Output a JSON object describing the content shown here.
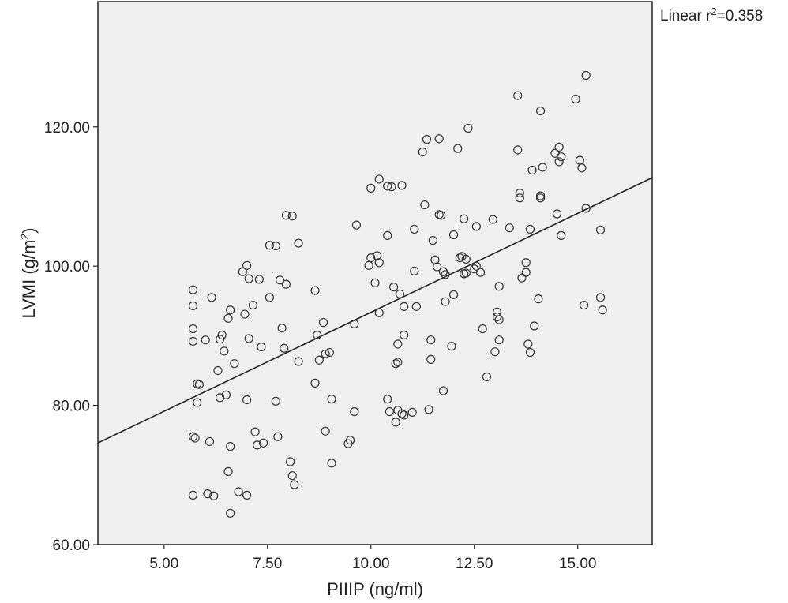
{
  "chart_data": {
    "type": "scatter",
    "xlabel": "PIIIP (ng/ml)",
    "ylabel_main": "LVMI (g/m",
    "ylabel_sup": "2",
    "ylabel_end": ")",
    "xlim": [
      3.4,
      16.8
    ],
    "ylim": [
      60,
      138
    ],
    "xticks": [
      "5.00",
      "7.50",
      "10.00",
      "12.50",
      "15.00"
    ],
    "yticks": [
      "60.00",
      "80.00",
      "100.00",
      "120.00"
    ],
    "xtick_values": [
      5,
      7.5,
      10,
      12.5,
      15
    ],
    "ytick_values": [
      60,
      80,
      100,
      120
    ],
    "annotation": {
      "prefix": "Linear r",
      "sup": "2",
      "suffix": "=0.358"
    },
    "fit_line": {
      "x": [
        3.4,
        16.8
      ],
      "y": [
        74.6,
        112.7
      ]
    },
    "marker": "open-circle",
    "background": "#efefef",
    "points": [
      [
        5.7,
        96.6
      ],
      [
        5.7,
        94.3
      ],
      [
        5.7,
        91.0
      ],
      [
        5.7,
        89.2
      ],
      [
        5.7,
        75.5
      ],
      [
        5.7,
        67.1
      ],
      [
        5.75,
        75.3
      ],
      [
        5.8,
        83.1
      ],
      [
        5.8,
        80.4
      ],
      [
        5.85,
        83.0
      ],
      [
        6.0,
        89.4
      ],
      [
        6.05,
        67.3
      ],
      [
        6.1,
        74.8
      ],
      [
        6.15,
        95.5
      ],
      [
        6.2,
        67.0
      ],
      [
        6.3,
        85.0
      ],
      [
        6.35,
        89.5
      ],
      [
        6.35,
        81.1
      ],
      [
        6.4,
        90.1
      ],
      [
        6.45,
        87.8
      ],
      [
        6.5,
        81.5
      ],
      [
        6.55,
        92.5
      ],
      [
        6.55,
        70.5
      ],
      [
        6.6,
        93.7
      ],
      [
        6.6,
        74.1
      ],
      [
        6.6,
        64.5
      ],
      [
        6.7,
        86.0
      ],
      [
        6.8,
        67.6
      ],
      [
        6.9,
        99.2
      ],
      [
        6.95,
        93.1
      ],
      [
        7.0,
        100.1
      ],
      [
        7.0,
        80.8
      ],
      [
        7.0,
        67.1
      ],
      [
        7.05,
        98.2
      ],
      [
        7.05,
        89.6
      ],
      [
        7.15,
        94.4
      ],
      [
        7.2,
        76.2
      ],
      [
        7.25,
        74.3
      ],
      [
        7.3,
        98.1
      ],
      [
        7.35,
        88.4
      ],
      [
        7.4,
        74.6
      ],
      [
        7.55,
        103.0
      ],
      [
        7.55,
        95.5
      ],
      [
        7.7,
        102.9
      ],
      [
        7.7,
        80.6
      ],
      [
        7.75,
        75.5
      ],
      [
        7.8,
        98.0
      ],
      [
        7.85,
        91.1
      ],
      [
        7.9,
        88.2
      ],
      [
        7.95,
        107.3
      ],
      [
        7.95,
        97.4
      ],
      [
        8.05,
        71.9
      ],
      [
        8.1,
        107.2
      ],
      [
        8.1,
        69.9
      ],
      [
        8.15,
        68.6
      ],
      [
        8.25,
        103.3
      ],
      [
        8.25,
        86.3
      ],
      [
        8.65,
        96.5
      ],
      [
        8.65,
        83.2
      ],
      [
        8.7,
        90.1
      ],
      [
        8.75,
        86.5
      ],
      [
        8.85,
        91.9
      ],
      [
        8.9,
        87.4
      ],
      [
        8.9,
        76.3
      ],
      [
        9.0,
        87.6
      ],
      [
        9.05,
        80.9
      ],
      [
        9.05,
        71.7
      ],
      [
        9.45,
        74.5
      ],
      [
        9.5,
        75.0
      ],
      [
        9.6,
        91.7
      ],
      [
        9.6,
        79.1
      ],
      [
        9.65,
        105.9
      ],
      [
        9.95,
        100.1
      ],
      [
        10.0,
        111.2
      ],
      [
        10.0,
        101.2
      ],
      [
        10.1,
        97.6
      ],
      [
        10.15,
        101.5
      ],
      [
        10.2,
        112.5
      ],
      [
        10.2,
        100.5
      ],
      [
        10.2,
        93.3
      ],
      [
        10.4,
        111.5
      ],
      [
        10.4,
        104.4
      ],
      [
        10.4,
        80.9
      ],
      [
        10.45,
        79.1
      ],
      [
        10.5,
        111.4
      ],
      [
        10.55,
        97.0
      ],
      [
        10.6,
        86.0
      ],
      [
        10.6,
        77.6
      ],
      [
        10.65,
        88.8
      ],
      [
        10.65,
        86.2
      ],
      [
        10.65,
        79.3
      ],
      [
        10.7,
        96.0
      ],
      [
        10.75,
        111.6
      ],
      [
        10.75,
        78.8
      ],
      [
        10.8,
        94.2
      ],
      [
        10.8,
        90.1
      ],
      [
        10.8,
        78.6
      ],
      [
        11.0,
        79.0
      ],
      [
        11.05,
        105.3
      ],
      [
        11.05,
        99.3
      ],
      [
        11.1,
        94.2
      ],
      [
        11.25,
        116.4
      ],
      [
        11.3,
        108.8
      ],
      [
        11.35,
        118.2
      ],
      [
        11.4,
        79.4
      ],
      [
        11.45,
        89.4
      ],
      [
        11.45,
        86.6
      ],
      [
        11.5,
        103.7
      ],
      [
        11.55,
        100.9
      ],
      [
        11.6,
        99.9
      ],
      [
        11.65,
        107.4
      ],
      [
        11.65,
        118.3
      ],
      [
        11.7,
        107.3
      ],
      [
        11.75,
        99.2
      ],
      [
        11.75,
        82.1
      ],
      [
        11.8,
        98.8
      ],
      [
        11.8,
        94.9
      ],
      [
        11.95,
        88.5
      ],
      [
        12.0,
        104.5
      ],
      [
        12.0,
        95.9
      ],
      [
        12.1,
        116.9
      ],
      [
        12.15,
        101.2
      ],
      [
        12.2,
        101.4
      ],
      [
        12.25,
        106.8
      ],
      [
        12.25,
        98.9
      ],
      [
        12.3,
        101.0
      ],
      [
        12.3,
        99.0
      ],
      [
        12.35,
        119.8
      ],
      [
        12.5,
        99.6
      ],
      [
        12.55,
        105.7
      ],
      [
        12.55,
        100.0
      ],
      [
        12.65,
        99.1
      ],
      [
        12.7,
        91.0
      ],
      [
        12.8,
        84.1
      ],
      [
        12.95,
        106.7
      ],
      [
        13.0,
        87.7
      ],
      [
        13.05,
        93.4
      ],
      [
        13.05,
        92.7
      ],
      [
        13.1,
        97.1
      ],
      [
        13.1,
        92.3
      ],
      [
        13.1,
        89.4
      ],
      [
        13.35,
        105.5
      ],
      [
        13.55,
        124.5
      ],
      [
        13.55,
        116.7
      ],
      [
        13.6,
        110.5
      ],
      [
        13.6,
        109.8
      ],
      [
        13.65,
        98.3
      ],
      [
        13.75,
        100.5
      ],
      [
        13.75,
        99.1
      ],
      [
        13.8,
        88.8
      ],
      [
        13.85,
        105.3
      ],
      [
        13.85,
        87.6
      ],
      [
        13.9,
        113.8
      ],
      [
        13.95,
        91.4
      ],
      [
        14.05,
        95.3
      ],
      [
        14.1,
        122.3
      ],
      [
        14.15,
        114.2
      ],
      [
        14.1,
        110.1
      ],
      [
        14.1,
        109.8
      ],
      [
        14.45,
        116.2
      ],
      [
        14.5,
        107.5
      ],
      [
        14.55,
        117.1
      ],
      [
        14.55,
        115.0
      ],
      [
        14.6,
        115.7
      ],
      [
        14.6,
        104.4
      ],
      [
        14.95,
        124.0
      ],
      [
        15.05,
        115.2
      ],
      [
        15.1,
        114.1
      ],
      [
        15.15,
        94.4
      ],
      [
        15.2,
        127.4
      ],
      [
        15.2,
        108.3
      ],
      [
        15.55,
        105.2
      ],
      [
        15.55,
        95.5
      ],
      [
        15.6,
        93.7
      ]
    ]
  }
}
